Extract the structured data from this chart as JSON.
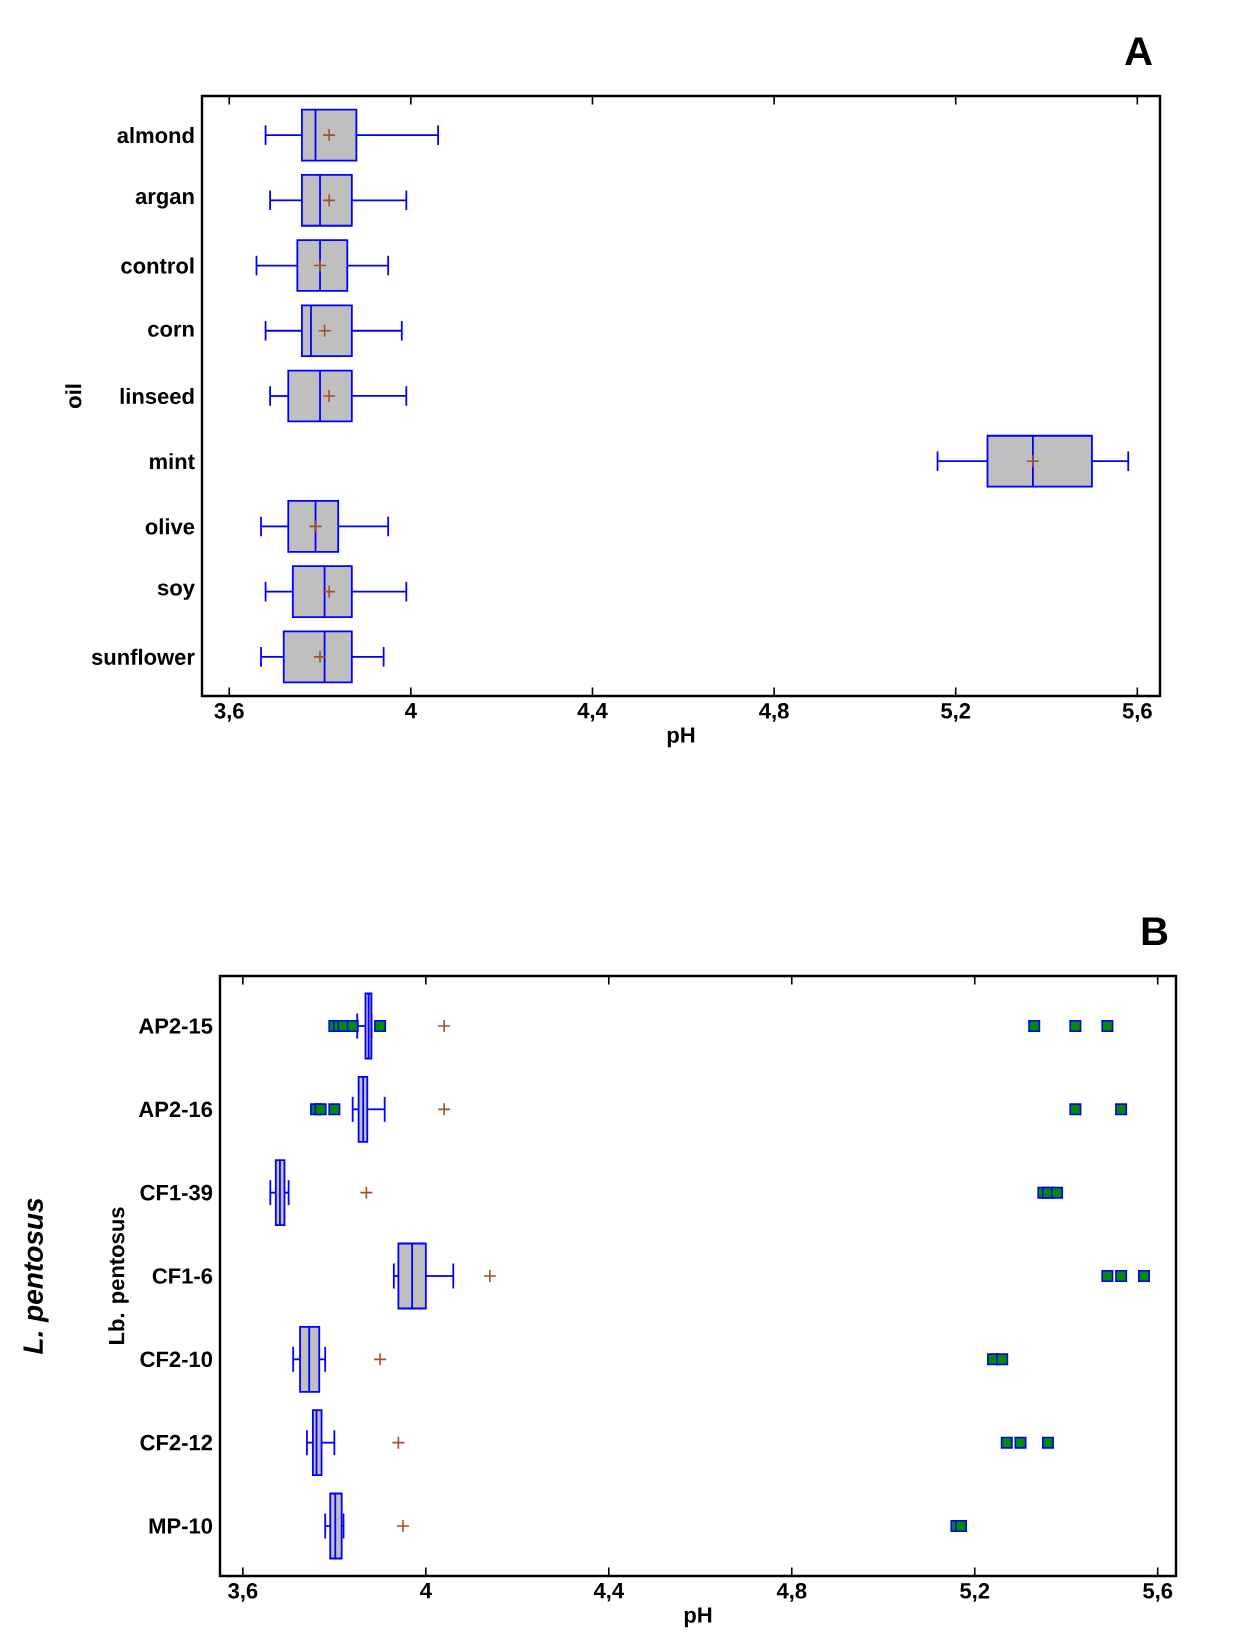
{
  "chart_data": [
    {
      "type": "box",
      "title": "A",
      "xlabel": "pH",
      "ylabel": "oil",
      "orientation": "horizontal",
      "color": "#0000ff",
      "categories": [
        "almond",
        "argan",
        "control",
        "corn",
        "linseed",
        "mint",
        "olive",
        "soy",
        "sunflower"
      ],
      "boxes": [
        {
          "low": 3.68,
          "q1": 3.76,
          "median": 3.79,
          "q3": 3.88,
          "high": 4.06,
          "mean": 3.82
        },
        {
          "low": 3.69,
          "q1": 3.76,
          "median": 3.8,
          "q3": 3.87,
          "high": 3.99,
          "mean": 3.82
        },
        {
          "low": 3.66,
          "q1": 3.75,
          "median": 3.8,
          "q3": 3.86,
          "high": 3.95,
          "mean": 3.8
        },
        {
          "low": 3.68,
          "q1": 3.76,
          "median": 3.78,
          "q3": 3.87,
          "high": 3.98,
          "mean": 3.81
        },
        {
          "low": 3.69,
          "q1": 3.73,
          "median": 3.8,
          "q3": 3.87,
          "high": 3.99,
          "mean": 3.82
        },
        {
          "low": 5.16,
          "q1": 5.27,
          "median": 5.37,
          "q3": 5.5,
          "high": 5.58,
          "mean": 5.37
        },
        {
          "low": 3.67,
          "q1": 3.73,
          "median": 3.79,
          "q3": 3.84,
          "high": 3.95,
          "mean": 3.79
        },
        {
          "low": 3.68,
          "q1": 3.74,
          "median": 3.81,
          "q3": 3.87,
          "high": 3.99,
          "mean": 3.82
        },
        {
          "low": 3.67,
          "q1": 3.72,
          "median": 3.81,
          "q3": 3.87,
          "high": 3.94,
          "mean": 3.8
        }
      ],
      "xlim": [
        3.54,
        5.65
      ],
      "xticks": [
        {
          "value": 3.6,
          "label": "3,6"
        },
        4,
        {
          "value": 4.4,
          "label": "4,4"
        },
        {
          "value": 4.8,
          "label": "4,8"
        },
        {
          "value": 5.2,
          "label": "5,2"
        },
        {
          "value": 5.6,
          "label": "5,6"
        }
      ]
    },
    {
      "type": "box",
      "title": "B",
      "xlabel": "pH",
      "ylabel": "Lb. pentosus",
      "annotations": [
        "L. pentosus"
      ],
      "orientation": "horizontal",
      "color": "#0000ff",
      "categories": [
        "AP2-15",
        "AP2-16",
        "CF1-39",
        "CF1-6",
        "CF2-10",
        "CF2-12",
        "MP-10"
      ],
      "boxes": [
        {
          "low": 3.85,
          "q1": 3.868,
          "median": 3.875,
          "q3": 3.881,
          "high": 3.881,
          "mean": 4.04,
          "outliers": [
            3.8,
            3.81,
            3.82,
            3.84,
            3.9,
            5.33,
            5.42,
            5.49
          ]
        },
        {
          "low": 3.84,
          "q1": 3.853,
          "median": 3.863,
          "q3": 3.872,
          "high": 3.91,
          "mean": 4.04,
          "outliers": [
            3.76,
            3.77,
            3.8,
            5.42,
            5.52
          ]
        },
        {
          "low": 3.66,
          "q1": 3.672,
          "median": 3.681,
          "q3": 3.691,
          "high": 3.7,
          "mean": 3.87,
          "outliers": [
            5.35,
            5.36,
            5.38
          ]
        },
        {
          "low": 3.93,
          "q1": 3.94,
          "median": 3.97,
          "q3": 4.0,
          "high": 4.06,
          "mean": 4.14,
          "outliers": [
            5.49,
            5.52,
            5.57
          ]
        },
        {
          "low": 3.71,
          "q1": 3.725,
          "median": 3.745,
          "q3": 3.767,
          "high": 3.78,
          "mean": 3.9,
          "outliers": [
            5.24,
            5.26
          ]
        },
        {
          "low": 3.74,
          "q1": 3.753,
          "median": 3.761,
          "q3": 3.772,
          "high": 3.8,
          "mean": 3.94,
          "outliers": [
            5.27,
            5.3,
            5.36
          ]
        },
        {
          "low": 3.78,
          "q1": 3.791,
          "median": 3.802,
          "q3": 3.816,
          "high": 3.82,
          "mean": 3.95,
          "outliers": [
            5.16,
            5.17
          ]
        }
      ],
      "xlim": [
        3.55,
        5.64
      ],
      "xticks": [
        {
          "value": 3.6,
          "label": "3,6"
        },
        4,
        {
          "value": 4.4,
          "label": "4,4"
        },
        {
          "value": 4.8,
          "label": "4,8"
        },
        {
          "value": 5.2,
          "label": "5,2"
        },
        {
          "value": 5.6,
          "label": "5,6"
        }
      ]
    }
  ]
}
